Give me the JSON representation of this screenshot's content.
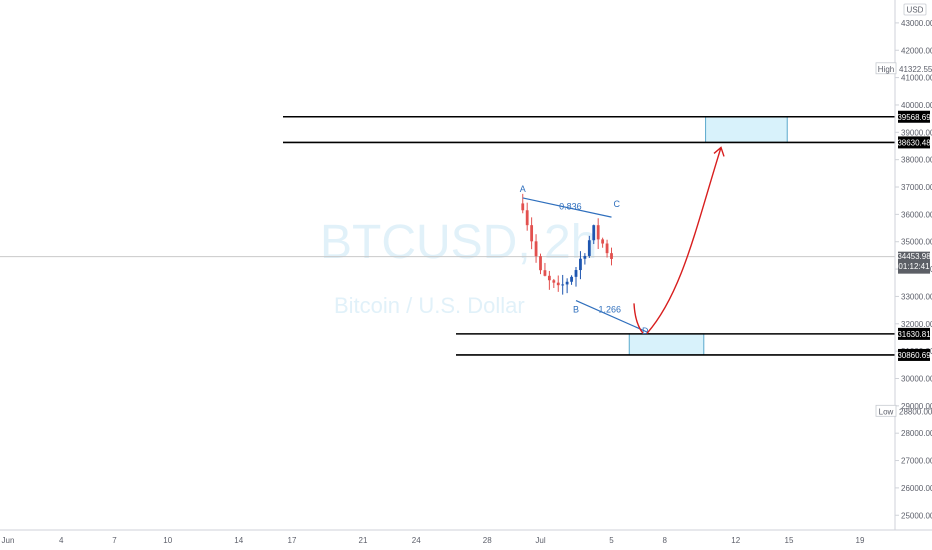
{
  "chart_data": {
    "type": "candlestick",
    "title": "",
    "watermark": {
      "symbol": "BTCUSD, 2h",
      "name": "Bitcoin / U.S. Dollar"
    },
    "currency": "USD",
    "x_ticks": [
      "Jun",
      "4",
      "7",
      "10",
      "14",
      "17",
      "21",
      "24",
      "28",
      "Jul",
      "5",
      "8",
      "12",
      "15",
      "19"
    ],
    "y_ticks": [
      25000,
      26000,
      27000,
      28000,
      29000,
      30000,
      31000,
      32000,
      33000,
      34000,
      35000,
      36000,
      37000,
      38000,
      39000,
      40000,
      41000,
      42000,
      43000
    ],
    "ylim": [
      24700,
      43800
    ],
    "high": {
      "label": "High",
      "value": "41322.55"
    },
    "low": {
      "label": "Low",
      "value": "28800.00"
    },
    "last_price": {
      "value": "34453.98",
      "countdown": "01:12:41"
    },
    "levels": [
      {
        "value": 39568.69,
        "label": "39568.69"
      },
      {
        "value": 38630.48,
        "label": "38630.48"
      },
      {
        "value": 31630.81,
        "label": "31630.81"
      },
      {
        "value": 30860.69,
        "label": "30860.69"
      }
    ],
    "target_zone": {
      "from": 38630.48,
      "to": 39568.69
    },
    "support_zone": {
      "from": 30860.69,
      "to": 31630.81
    },
    "pattern_points": [
      {
        "name": "A",
        "date": "Jun 30",
        "price": 36600
      },
      {
        "name": "B",
        "date": "Jul 3",
        "price": 32850
      },
      {
        "name": "C",
        "date": "Jul 5",
        "price": 35900
      },
      {
        "name": "D",
        "date": "Jul 7",
        "price": 31700
      }
    ],
    "ratios": [
      {
        "label": "0.836",
        "between": "A-C"
      },
      {
        "label": "1.266",
        "between": "B-D"
      }
    ],
    "projection": {
      "from": {
        "date": "Jul 7",
        "price": 31650
      },
      "to": {
        "date": "Jul 11",
        "price": 38630
      }
    },
    "series_anchor_points": [
      {
        "date": "May 31",
        "price": 37300
      },
      {
        "date": "Jun 1",
        "price": 36300
      },
      {
        "date": "Jun 2",
        "price": 38000
      },
      {
        "date": "Jun 3",
        "price": 39200
      },
      {
        "date": "Jun 4",
        "price": 37000
      },
      {
        "date": "Jun 5",
        "price": 36000
      },
      {
        "date": "Jun 6",
        "price": 35600
      },
      {
        "date": "Jun 7",
        "price": 35500
      },
      {
        "date": "Jun 8",
        "price": 32500
      },
      {
        "date": "Jun 9",
        "price": 35500
      },
      {
        "date": "Jun 10",
        "price": 36800
      },
      {
        "date": "Jun 11",
        "price": 37000
      },
      {
        "date": "Jun 12",
        "price": 35600
      },
      {
        "date": "Jun 13",
        "price": 36600
      },
      {
        "date": "Jun 14",
        "price": 40500
      },
      {
        "date": "Jun 15",
        "price": 40600
      },
      {
        "date": "Jun 16",
        "price": 39700
      },
      {
        "date": "Jun 17",
        "price": 38600
      },
      {
        "date": "Jun 18",
        "price": 37800
      },
      {
        "date": "Jun 19",
        "price": 35900
      },
      {
        "date": "Jun 20",
        "price": 35700
      },
      {
        "date": "Jun 21",
        "price": 32800
      },
      {
        "date": "Jun 22",
        "price": 30800
      },
      {
        "date": "Jun 23",
        "price": 33600
      },
      {
        "date": "Jun 24",
        "price": 34500
      },
      {
        "date": "Jun 25",
        "price": 32000
      },
      {
        "date": "Jun 26",
        "price": 31800
      },
      {
        "date": "Jun 27",
        "price": 33700
      },
      {
        "date": "Jun 28",
        "price": 34700
      },
      {
        "date": "Jun 29",
        "price": 35500
      },
      {
        "date": "Jun 30",
        "price": 36400
      },
      {
        "date": "Jul 1",
        "price": 33800
      },
      {
        "date": "Jul 2",
        "price": 33200
      },
      {
        "date": "Jul 3",
        "price": 34000
      },
      {
        "date": "Jul 4",
        "price": 35400
      },
      {
        "date": "Jul 5",
        "price": 34454
      }
    ]
  },
  "colors": {
    "up": "#1e56b0",
    "down": "#e2504e",
    "zone": "#d8f2fb",
    "zone_border": "#5aa9cc",
    "projection": "#d81e1e",
    "pattern": "#2f6fbd",
    "axis_text": "#5d606b",
    "tag_bg": "#5c5f66"
  }
}
